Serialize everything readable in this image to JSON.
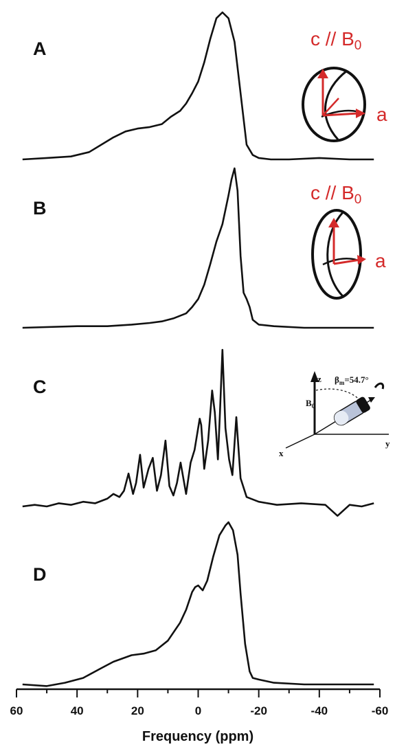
{
  "chart_data": {
    "type": "line",
    "xlabel": "Frequency (ppm)",
    "xlim": [
      60,
      -60
    ],
    "xreversed": true,
    "x_ticks": [
      60,
      40,
      20,
      0,
      -20,
      -40,
      -60
    ],
    "x_tick_labels": [
      "60",
      "40",
      "20",
      "0",
      "-20",
      "-40",
      "-60"
    ],
    "panels": [
      {
        "label": "A",
        "inset": {
          "top_label": "c // B",
          "top_sub": "0",
          "side_label": "a"
        },
        "series": [
          {
            "x": [
              58,
              50,
              42,
              36,
              32,
              28,
              24,
              20,
              16,
              12,
              9,
              6,
              4,
              2,
              0,
              -2,
              -4,
              -6,
              -8,
              -10,
              -12,
              -14,
              -16,
              -18,
              -20,
              -24,
              -30,
              -40,
              -50,
              -58
            ],
            "y": [
              0.0,
              0.01,
              0.02,
              0.05,
              0.1,
              0.15,
              0.19,
              0.21,
              0.22,
              0.24,
              0.29,
              0.33,
              0.38,
              0.45,
              0.53,
              0.66,
              0.82,
              0.96,
              1.0,
              0.96,
              0.8,
              0.45,
              0.1,
              0.03,
              0.01,
              0.0,
              0.0,
              0.01,
              0.0,
              0.0
            ]
          }
        ]
      },
      {
        "label": "B",
        "inset": {
          "top_label": "c // B",
          "top_sub": "0",
          "side_label": "a"
        },
        "series": [
          {
            "x": [
              58,
              40,
              30,
              22,
              16,
              12,
              8,
              4,
              2,
              0,
              -2,
              -4,
              -6,
              -8,
              -10,
              -11,
              -12,
              -13,
              -14,
              -15,
              -16,
              -17,
              -18,
              -20,
              -25,
              -35,
              -45,
              -58
            ],
            "y": [
              0.0,
              0.01,
              0.01,
              0.02,
              0.03,
              0.04,
              0.06,
              0.09,
              0.13,
              0.18,
              0.27,
              0.4,
              0.54,
              0.65,
              0.83,
              0.93,
              1.0,
              0.86,
              0.45,
              0.22,
              0.18,
              0.13,
              0.05,
              0.02,
              0.01,
              0.0,
              0.0,
              0.0
            ]
          }
        ]
      },
      {
        "label": "C",
        "inset": {
          "axis_z": "z",
          "axis_x": "x",
          "axis_y": "y",
          "b0_label": "B",
          "b0_sub": "0",
          "angle_label": "β",
          "angle_sub": "m",
          "angle_value": "=54.7°"
        },
        "series": [
          {
            "x": [
              58,
              54,
              50,
              46,
              42,
              38,
              34,
              30,
              28,
              26,
              24.5,
              23,
              21.5,
              20.5,
              19.2,
              18,
              16.4,
              15,
              13.6,
              12.3,
              10.8,
              9.5,
              8.2,
              7,
              5.8,
              4,
              2.5,
              1.2,
              -0.5,
              -1,
              -2,
              -3.3,
              -4.6,
              -5.5,
              -6.5,
              -7.2,
              -8,
              -9,
              -10.2,
              -11.3,
              -12.6,
              -14,
              -16,
              -20,
              -26,
              -34,
              -42,
              -46,
              -50,
              -54,
              -58
            ],
            "y": [
              0.0,
              0.01,
              0.0,
              0.02,
              0.01,
              0.03,
              0.02,
              0.05,
              0.08,
              0.06,
              0.1,
              0.21,
              0.08,
              0.15,
              0.33,
              0.12,
              0.24,
              0.31,
              0.1,
              0.2,
              0.42,
              0.13,
              0.07,
              0.15,
              0.28,
              0.08,
              0.28,
              0.36,
              0.56,
              0.52,
              0.24,
              0.42,
              0.74,
              0.6,
              0.3,
              0.6,
              1.0,
              0.5,
              0.3,
              0.2,
              0.57,
              0.18,
              0.06,
              0.03,
              0.01,
              0.02,
              0.01,
              -0.06,
              0.01,
              0.0,
              0.02
            ]
          }
        ]
      },
      {
        "label": "D",
        "series": [
          {
            "x": [
              58,
              50,
              44,
              38,
              32,
              28,
              22,
              18,
              14,
              10,
              6,
              4,
              2,
              1,
              0,
              -1.5,
              -3,
              -5,
              -7,
              -9,
              -10,
              -11.5,
              -13,
              -14,
              -15.5,
              -17,
              -18,
              -20,
              -25,
              -35,
              -45,
              -58
            ],
            "y": [
              0.0,
              -0.01,
              0.01,
              0.04,
              0.1,
              0.14,
              0.18,
              0.19,
              0.21,
              0.27,
              0.38,
              0.46,
              0.57,
              0.6,
              0.61,
              0.58,
              0.64,
              0.79,
              0.92,
              0.98,
              1.0,
              0.95,
              0.8,
              0.56,
              0.25,
              0.08,
              0.04,
              0.03,
              0.01,
              0.0,
              0.0,
              0.0
            ]
          }
        ]
      }
    ]
  }
}
